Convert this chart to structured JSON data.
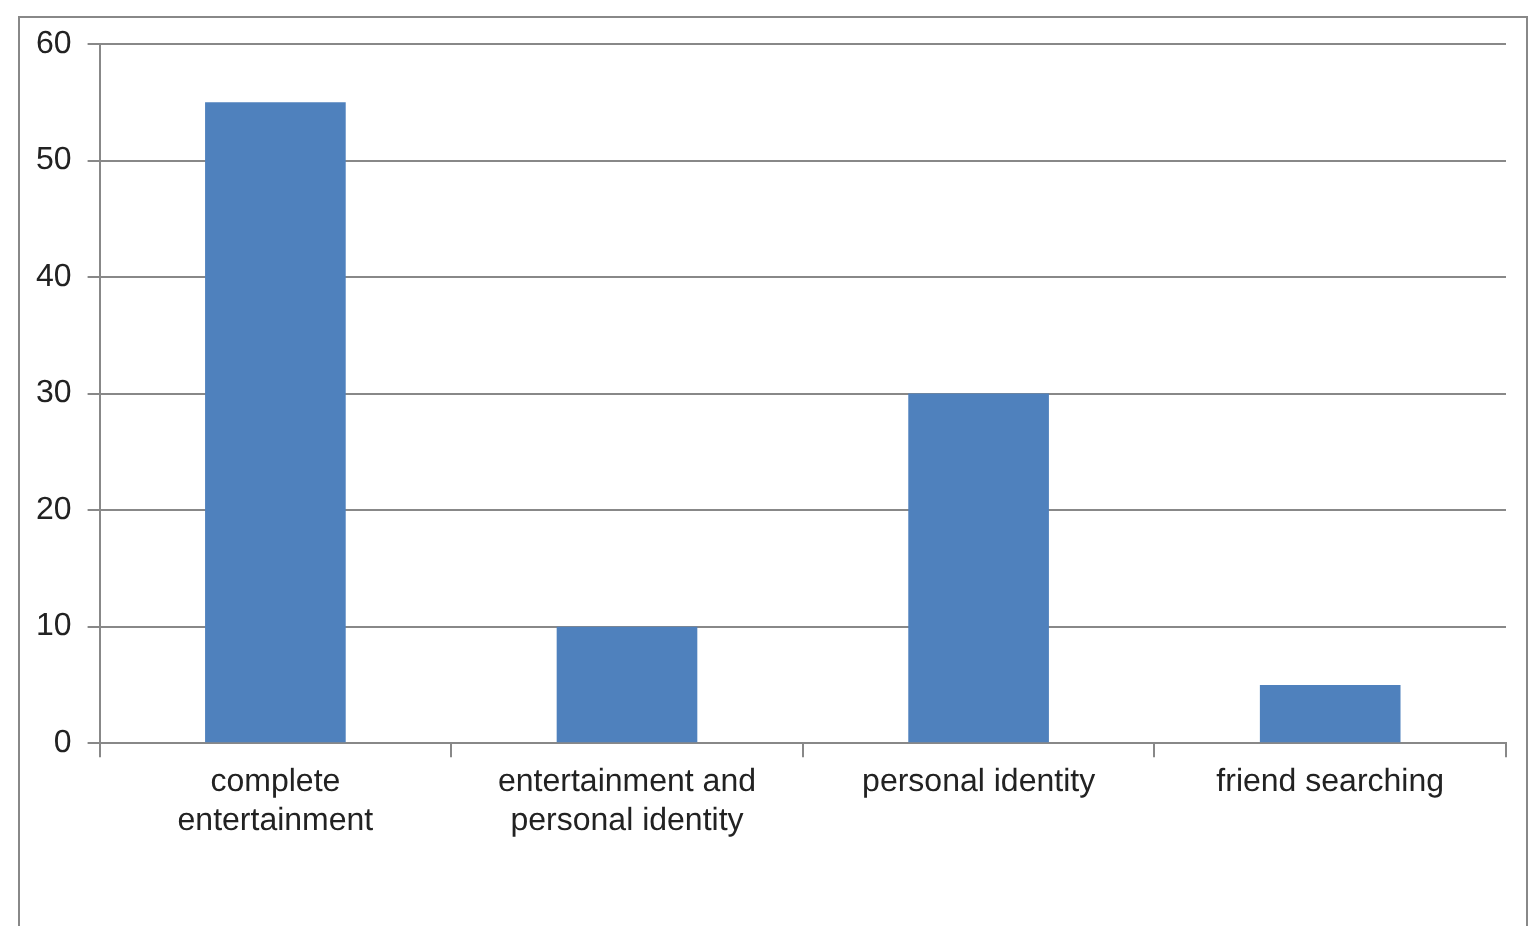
{
  "chart_data": {
    "type": "bar",
    "categories": [
      "complete entertainment",
      "entertainment and personal identity",
      "personal identity",
      "friend searching"
    ],
    "values": [
      55,
      10,
      30,
      5
    ],
    "color": "#4f81bd",
    "ylim": [
      0,
      60
    ],
    "yticks": [
      0,
      10,
      20,
      30,
      40,
      50,
      60
    ],
    "grid": "y",
    "legend": false
  }
}
